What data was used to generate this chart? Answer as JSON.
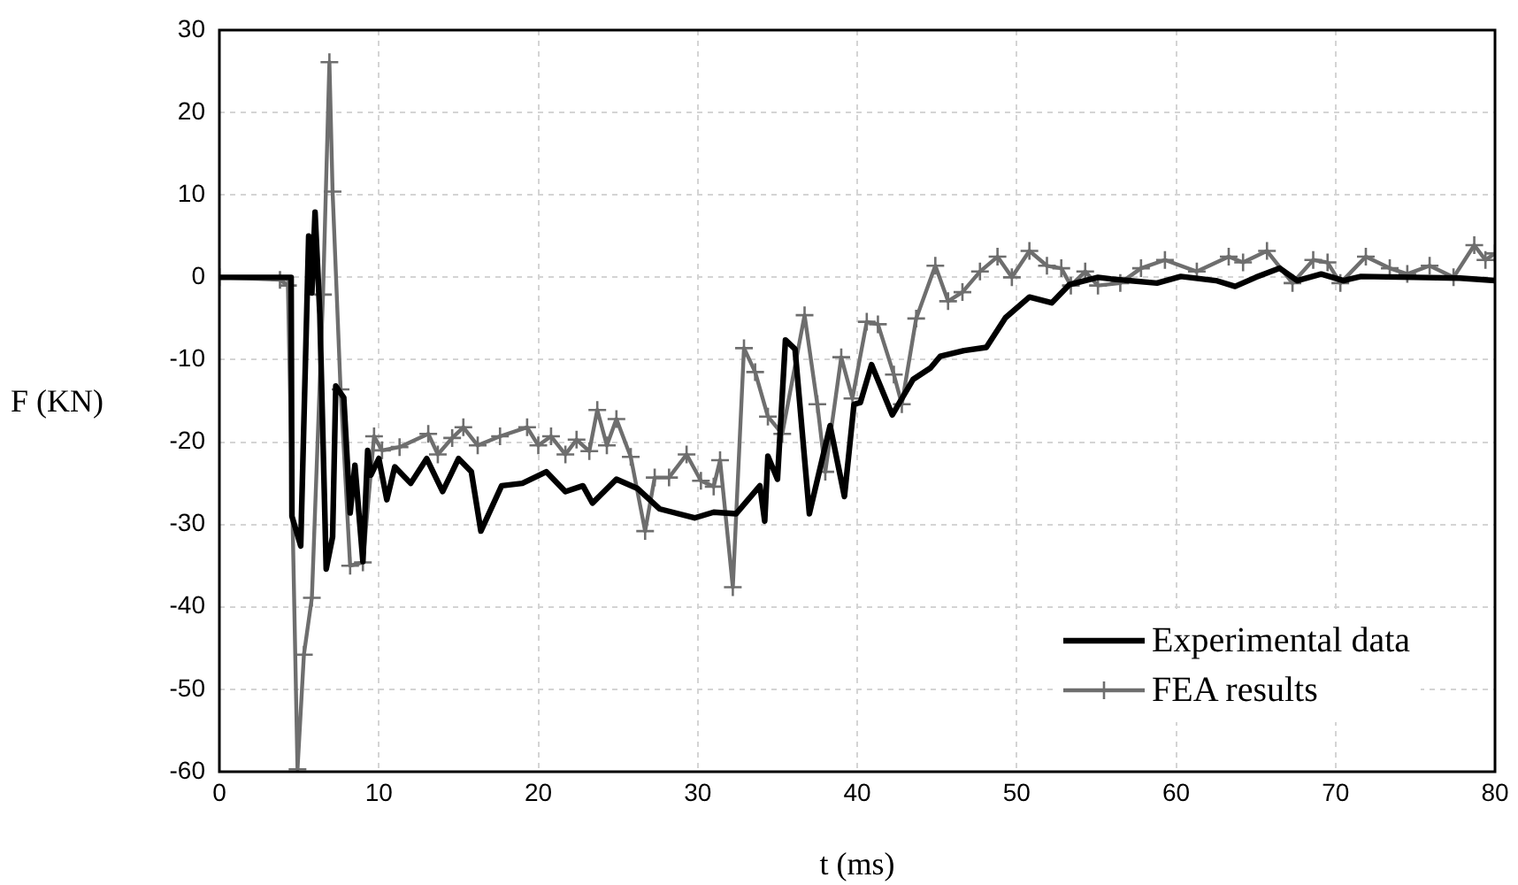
{
  "chart_data": {
    "type": "line",
    "xlabel": "t (ms)",
    "ylabel": "F (KN)",
    "xlim": [
      0,
      80
    ],
    "xticks": [
      0,
      10,
      20,
      30,
      40,
      50,
      60,
      70,
      80
    ],
    "ylim": [
      -60,
      30
    ],
    "yticks": [
      -60,
      -50,
      -40,
      -30,
      -20,
      -10,
      0,
      10,
      20,
      30
    ],
    "grid": true,
    "legend": "bottom right",
    "series": [
      {
        "name": "Experimental data",
        "color": "#000000",
        "marker": "none",
        "x": [
          0,
          2,
          4.5,
          4.55,
          5.1,
          5.6,
          5.8,
          6.0,
          6.3,
          6.7,
          7.1,
          7.3,
          7.8,
          8.2,
          8.5,
          9.0,
          9.3,
          9.5,
          10,
          10.5,
          11,
          12,
          13,
          14,
          15,
          15.8,
          16.4,
          17.7,
          19,
          20.5,
          21.7,
          22.8,
          23.4,
          24.9,
          26.2,
          27.6,
          29.8,
          31,
          32.4,
          33.9,
          34.2,
          34.4,
          35,
          35.5,
          36.1,
          37,
          38.3,
          39.2,
          39.8,
          40.2,
          40.9,
          42.2,
          43.5,
          44.6,
          45.2,
          46.7,
          48.1,
          49.3,
          50.8,
          52.2,
          53.3,
          55.1,
          55.9,
          58.8,
          60.3,
          62.5,
          63.7,
          65,
          66.5,
          67.6,
          69.1,
          70.5,
          71.6,
          74.9,
          77.8,
          80
        ],
        "values": [
          0,
          0,
          0,
          -29,
          -32.6,
          5,
          -1.9,
          7.9,
          -4.5,
          -35.4,
          -31.5,
          -13.2,
          -14.6,
          -28.6,
          -22.8,
          -34.5,
          -21,
          -24,
          -22,
          -27,
          -23,
          -25,
          -22,
          -26,
          -22,
          -23.6,
          -30.8,
          -25.3,
          -25,
          -23.6,
          -26,
          -25.3,
          -27.4,
          -24.5,
          -25.6,
          -28.1,
          -29.2,
          -28.5,
          -28.7,
          -25.3,
          -29.6,
          -21.7,
          -24.5,
          -7.6,
          -8.7,
          -28.7,
          -18,
          -26.6,
          -15.4,
          -15.2,
          -10.6,
          -16.7,
          -12.4,
          -11,
          -9.6,
          -8.9,
          -8.5,
          -4.9,
          -2.4,
          -3.1,
          -0.9,
          0,
          -0.2,
          -0.7,
          0.1,
          -0.4,
          -1.1,
          0,
          1.1,
          -0.4,
          0.4,
          -0.4,
          0.1,
          0,
          -0.1,
          -0.4
        ]
      },
      {
        "name": "FEA results",
        "color": "#6e6e6e",
        "marker": "cross",
        "x": [
          0,
          3.8,
          4.3,
          4.9,
          5.3,
          5.8,
          6.5,
          6.9,
          7.1,
          7.6,
          8.2,
          9.0,
          9.7,
          10.2,
          11.3,
          13.1,
          13.7,
          14.6,
          15.3,
          16.2,
          17.6,
          19.3,
          20,
          20.8,
          21.7,
          22.4,
          23.2,
          23.7,
          24.3,
          24.9,
          25.8,
          26.7,
          27.3,
          28.2,
          29.3,
          30.2,
          31,
          31.4,
          32.2,
          32.9,
          33.6,
          34.4,
          35.3,
          36.7,
          37.5,
          38,
          39,
          39.7,
          40.6,
          41.3,
          42.3,
          42.8,
          43.7,
          44.9,
          45.7,
          46.6,
          47.7,
          48.8,
          49.7,
          50.8,
          51.9,
          52.8,
          53.4,
          54.3,
          55.1,
          56.5,
          57.8,
          59.3,
          61.3,
          63.3,
          64.2,
          65.7,
          67.3,
          68.6,
          69.5,
          70.3,
          71.9,
          73.4,
          74.5,
          75.9,
          77.4,
          78.7,
          79.4,
          80
        ],
        "values": [
          0,
          -0.3,
          -1,
          -59.7,
          -45.8,
          -38.9,
          -2.1,
          26.1,
          10.4,
          -13.6,
          -35,
          -34.6,
          -19.3,
          -21,
          -20.6,
          -19,
          -21.5,
          -19.5,
          -18.2,
          -20.4,
          -19.3,
          -18.2,
          -20.4,
          -19.3,
          -21.5,
          -19.7,
          -21.1,
          -16.1,
          -20.4,
          -17.2,
          -21.8,
          -30.8,
          -24.3,
          -24.3,
          -21.5,
          -24.7,
          -25.4,
          -22.2,
          -37.6,
          -8.6,
          -11.5,
          -16.9,
          -19,
          -4.6,
          -15.4,
          -23.6,
          -9.7,
          -14.7,
          -5.4,
          -5.7,
          -11.8,
          -15.4,
          -5,
          1.4,
          -2.9,
          -1.8,
          0.7,
          2.5,
          0,
          3.2,
          1.4,
          1.1,
          -1,
          0.7,
          -1,
          -0.7,
          1.1,
          2.1,
          0.7,
          2.5,
          1.8,
          3.2,
          -0.7,
          2.1,
          1.8,
          -0.7,
          2.5,
          1.1,
          0.4,
          1.4,
          0,
          3.9,
          2.1,
          2.9
        ]
      }
    ]
  }
}
